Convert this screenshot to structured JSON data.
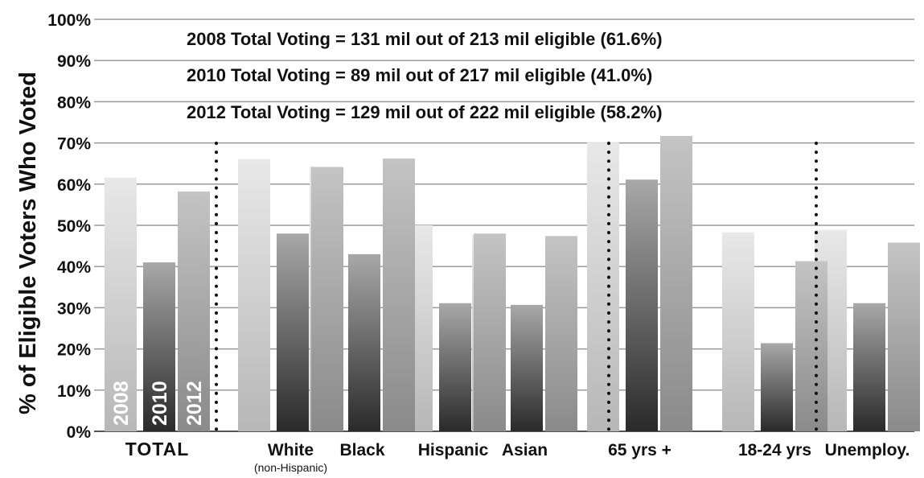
{
  "chart_data": {
    "type": "bar",
    "ylabel": "% of Eligible Voters Who Voted",
    "ylim": [
      0,
      100
    ],
    "yticks": [
      "0%",
      "10%",
      "20%",
      "30%",
      "40%",
      "50%",
      "60%",
      "70%",
      "80%",
      "90%",
      "100%"
    ],
    "grid": true,
    "categories": [
      {
        "label": "TOTAL",
        "sublabel": ""
      },
      {
        "label": "White",
        "sublabel": "(non-Hispanic)"
      },
      {
        "label": "Black",
        "sublabel": ""
      },
      {
        "label": "Hispanic",
        "sublabel": ""
      },
      {
        "label": "Asian",
        "sublabel": ""
      },
      {
        "label": "65 yrs +",
        "sublabel": ""
      },
      {
        "label": "18-24 yrs",
        "sublabel": ""
      },
      {
        "label": "Unemploy.",
        "sublabel": ""
      }
    ],
    "series": [
      {
        "name": "2008",
        "values": [
          61.6,
          66.1,
          64.3,
          50.0,
          47.6,
          70.1,
          48.3,
          48.9
        ]
      },
      {
        "name": "2010",
        "values": [
          41.0,
          48.0,
          43.0,
          31.1,
          30.7,
          61.1,
          21.4,
          31.1
        ]
      },
      {
        "name": "2012",
        "values": [
          58.2,
          64.1,
          66.2,
          48.0,
          47.4,
          71.7,
          41.3,
          45.8
        ]
      }
    ],
    "annotations": [
      "2008 Total Voting = 131 mil out of 213 mil eligible (61.6%)",
      "2010 Total Voting = 89 mil out of 217 mil eligible (41.0%)",
      "2012 Total Voting = 129 mil out of 222 mil eligible (58.2%)"
    ],
    "colors": {
      "s2008": [
        "#e8e8e8",
        "#b7b7b7"
      ],
      "s2010": [
        "#a8a8a8",
        "#2a2a2a"
      ],
      "s2012": [
        "#c4c4c4",
        "#8a8a8a"
      ],
      "grid": "#9a9a9a",
      "text": "#111111"
    }
  }
}
